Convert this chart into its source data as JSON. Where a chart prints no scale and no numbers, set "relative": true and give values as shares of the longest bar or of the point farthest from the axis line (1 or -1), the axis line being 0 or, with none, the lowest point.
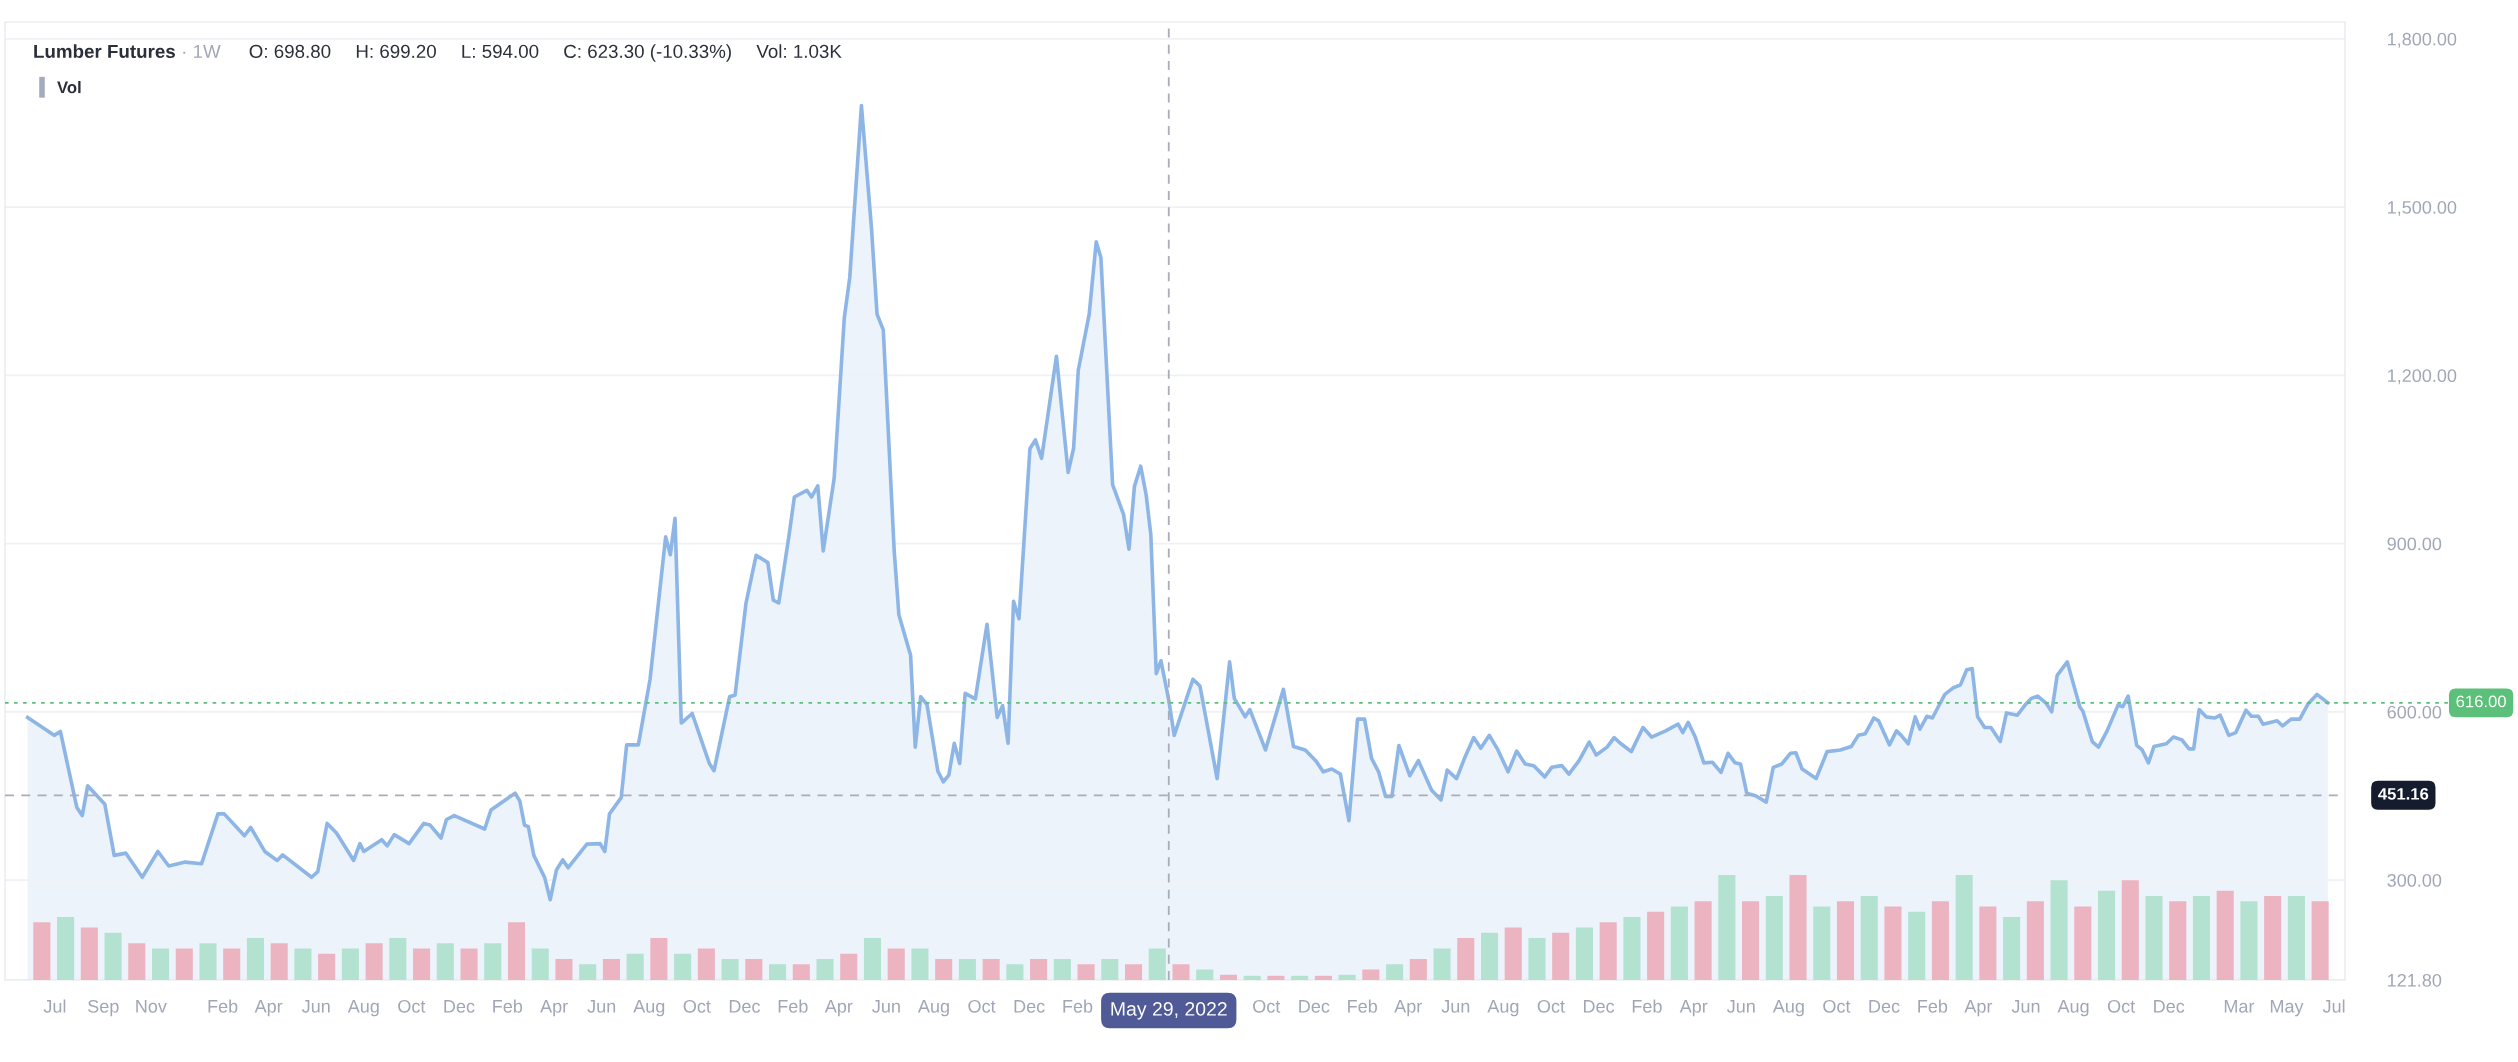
{
  "chart_data": [
    {
      "type": "area",
      "title": "Lumber Futures",
      "annotations": [
        "· 1W",
        "O: 698.80",
        "H: 699.20",
        "L: 594.00",
        "C: 623.30 (-10.33%)",
        "Vol: 1.03K"
      ],
      "x": [
        "2018-05-27",
        "2018-06-30",
        "2018-07-08",
        "2018-07-29",
        "2018-08-05",
        "2018-08-12",
        "2018-09-03",
        "2018-09-15",
        "2018-09-30",
        "2018-10-21",
        "2018-11-10",
        "2018-11-24",
        "2018-12-15",
        "2019-01-05",
        "2019-01-26",
        "2019-02-03",
        "2019-03-01",
        "2019-03-09",
        "2019-03-27",
        "2019-04-12",
        "2019-04-19",
        "2019-05-26",
        "2019-06-03",
        "2019-06-15",
        "2019-06-27",
        "2019-07-19",
        "2019-07-27",
        "2019-08-01",
        "2019-08-24",
        "2019-08-31",
        "2019-09-09",
        "2019-09-28",
        "2019-10-17",
        "2019-10-25",
        "2019-11-08",
        "2019-11-15",
        "2019-11-25",
        "2020-01-03",
        "2020-01-11",
        "2020-02-11",
        "2020-02-17",
        "2020-02-23",
        "2020-02-28",
        "2020-03-06",
        "2020-03-20",
        "2020-03-27",
        "2020-04-04",
        "2020-04-12",
        "2020-04-19",
        "2020-05-13",
        "2020-05-30",
        "2020-06-05",
        "2020-06-11",
        "2020-06-26",
        "2020-07-03",
        "2020-07-18",
        "2020-08-02",
        "2020-08-22",
        "2020-08-28",
        "2020-09-03",
        "2020-09-11",
        "2020-09-25",
        "2020-10-17",
        "2020-10-23",
        "2020-11-12",
        "2020-11-19",
        "2020-12-03",
        "2020-12-16",
        "2020-12-31",
        "2021-01-07",
        "2021-01-14",
        "2021-01-27",
        "2021-02-03",
        "2021-02-19",
        "2021-02-25",
        "2021-03-05",
        "2021-03-12",
        "2021-03-26",
        "2021-04-08",
        "2021-04-15",
        "2021-04-30",
        "2021-05-13",
        "2021-05-20",
        "2021-05-28",
        "2021-06-11",
        "2021-06-17",
        "2021-07-02",
        "2021-07-08",
        "2021-07-15",
        "2021-07-23",
        "2021-08-06",
        "2021-08-13",
        "2021-08-20",
        "2021-08-27",
        "2021-09-03",
        "2021-09-10",
        "2021-09-23",
        "2021-10-08",
        "2021-10-21",
        "2021-10-28",
        "2021-11-04",
        "2021-11-11",
        "2021-11-18",
        "2021-12-02",
        "2021-12-09",
        "2021-12-17",
        "2022-01-05",
        "2022-01-20",
        "2022-01-27",
        "2022-02-02",
        "2022-02-16",
        "2022-02-25",
        "2022-03-03",
        "2022-03-18",
        "2022-04-01",
        "2022-04-08",
        "2022-04-15",
        "2022-04-23",
        "2022-04-30",
        "2022-05-06",
        "2022-05-13",
        "2022-05-19",
        "2022-05-29",
        "2022-06-05",
        "2022-06-29",
        "2022-07-08",
        "2022-07-30",
        "2022-08-15",
        "2022-08-21",
        "2022-09-04",
        "2022-09-10",
        "2022-09-30",
        "2022-10-23",
        "2022-11-05",
        "2022-11-20",
        "2022-12-04",
        "2022-12-13",
        "2022-12-24",
        "2023-01-04",
        "2023-01-15",
        "2023-01-26",
        "2023-02-04",
        "2023-02-13",
        "2023-02-22",
        "2023-03-03",
        "2023-03-11",
        "2023-03-20",
        "2023-04-03",
        "2023-04-14",
        "2023-05-01",
        "2023-05-13",
        "2023-05-21",
        "2023-06-02",
        "2023-06-13",
        "2023-06-24",
        "2023-07-03",
        "2023-07-14",
        "2023-07-25",
        "2023-08-07",
        "2023-08-18",
        "2023-08-29",
        "2023-09-09",
        "2023-09-23",
        "2023-10-02",
        "2023-10-15",
        "2023-10-24",
        "2023-11-06",
        "2023-11-19",
        "2023-11-28",
        "2023-12-12",
        "2023-12-21",
        "2023-12-29",
        "2024-01-12",
        "2024-01-27",
        "2024-02-07",
        "2024-02-25",
        "2024-03-12",
        "2024-03-18",
        "2024-03-25",
        "2024-04-03",
        "2024-04-14",
        "2024-04-25",
        "2024-05-06",
        "2024-05-15",
        "2024-05-24",
        "2024-05-31",
        "2024-06-08",
        "2024-06-20",
        "2024-07-03",
        "2024-07-12",
        "2024-07-23",
        "2024-08-03",
        "2024-08-10",
        "2024-08-18",
        "2024-09-05",
        "2024-09-19",
        "2024-10-06",
        "2024-10-20",
        "2024-10-29",
        "2024-11-07",
        "2024-11-18",
        "2024-11-24",
        "2024-12-08",
        "2024-12-17",
        "2024-12-23",
        "2025-01-01",
        "2025-01-10",
        "2025-01-16",
        "2025-01-25",
        "2025-02-01",
        "2025-02-17",
        "2025-02-28",
        "2025-03-09",
        "2025-03-17",
        "2025-03-24",
        "2025-03-31",
        "2025-04-09",
        "2025-04-17",
        "2025-04-29",
        "2025-05-07",
        "2025-05-21",
        "2025-06-01",
        "2025-06-08",
        "2025-06-16",
        "2025-06-27",
        "2025-07-04",
        "2025-07-11",
        "2025-07-24",
        "2025-08-09",
        "2025-08-13",
        "2025-08-25",
        "2025-09-02",
        "2025-09-13",
        "2025-09-27",
        "2025-10-03",
        "2025-10-10",
        "2025-10-21",
        "2025-10-28",
        "2025-11-05",
        "2025-11-12",
        "2025-11-28",
        "2025-12-07",
        "2025-12-18",
        "2025-12-27",
        "2026-01-02",
        "2026-01-09",
        "2026-01-18",
        "2026-01-29",
        "2026-02-05",
        "2026-02-16",
        "2026-02-25",
        "2026-03-10",
        "2026-03-17",
        "2026-03-26",
        "2026-04-01",
        "2026-04-19",
        "2026-04-26",
        "2026-05-07",
        "2026-05-18",
        "2026-05-29",
        "2026-06-09",
        "2026-06-23"
      ],
      "series": [
        {
          "color": "#8db6e6",
          "values": [
            590,
            558,
            565,
            430,
            415,
            468,
            435,
            344,
            348,
            305,
            351,
            325,
            332,
            329,
            418,
            418,
            379,
            394,
            351,
            335,
            345,
            305,
            315,
            401,
            384,
            335,
            365,
            351,
            372,
            361,
            381,
            365,
            401,
            398,
            375,
            408,
            415,
            391,
            425,
            455,
            441,
            398,
            395,
            344,
            304,
            265,
            318,
            336,
            322,
            364,
            365,
            351,
            418,
            447,
            541,
            541,
            658,
            912,
            880,
            945,
            580,
            597,
            508,
            495,
            627,
            630,
            794,
            879,
            866,
            799,
            794,
            913,
            983,
            995,
            983,
            1003,
            887,
            1016,
            1302,
            1374,
            1681,
            1460,
            1309,
            1281,
            887,
            773,
            701,
            537,
            627,
            613,
            494,
            475,
            487,
            544,
            508,
            633,
            623,
            756,
            590,
            611,
            544,
            797,
            766,
            1069,
            1085,
            1052,
            1234,
            1027,
            1070,
            1209,
            1309,
            1438,
            1410,
            1005,
            952,
            890,
            1002,
            1038,
            987,
            916,
            668,
            691,
            621,
            558,
            658,
            646,
            481,
            689,
            624,
            591,
            604,
            532,
            640,
            538,
            532,
            512,
            493,
            498,
            489,
            406,
            587,
            587,
            517,
            493,
            449,
            449,
            540,
            486,
            513,
            460,
            443,
            496,
            481,
            520,
            554,
            535,
            558,
            532,
            493,
            530,
            507,
            504,
            484,
            501,
            504,
            489,
            513,
            546,
            523,
            537,
            554,
            544,
            529,
            572,
            555,
            566,
            578,
            563,
            581,
            555,
            509,
            510,
            492,
            526,
            509,
            507,
            455,
            450,
            439,
            501,
            507,
            526,
            527,
            498,
            481,
            529,
            532,
            538,
            558,
            561,
            589,
            584,
            541,
            566,
            558,
            543,
            591,
            569,
            592,
            589,
            631,
            643,
            648,
            675,
            677,
            591,
            572,
            572,
            547,
            598,
            594,
            614,
            624,
            628,
            615,
            600,
            665,
            689,
            609,
            601,
            547,
            537,
            566,
            612,
            609,
            628,
            540,
            532,
            509,
            538,
            543,
            555,
            550,
            534,
            534,
            604,
            591,
            589,
            594,
            558,
            563,
            603,
            592,
            592,
            578,
            584,
            575,
            587,
            587,
            615,
            631,
            616
          ]
        }
      ],
      "xlim": [
        "2018-04-28",
        "2026-07-15"
      ],
      "xticks": [
        {
          "value": "2018-07-01",
          "label": "Jul"
        },
        {
          "value": "2018-09-01",
          "label": "Sep"
        },
        {
          "value": "2018-11-01",
          "label": "Nov"
        },
        {
          "value": "2019-02-01",
          "label": "Feb"
        },
        {
          "value": "2019-04-01",
          "label": "Apr"
        },
        {
          "value": "2019-06-01",
          "label": "Jun"
        },
        {
          "value": "2019-08-01",
          "label": "Aug"
        },
        {
          "value": "2019-10-01",
          "label": "Oct"
        },
        {
          "value": "2019-12-01",
          "label": "Dec"
        },
        {
          "value": "2020-02-01",
          "label": "Feb"
        },
        {
          "value": "2020-04-01",
          "label": "Apr"
        },
        {
          "value": "2020-06-01",
          "label": "Jun"
        },
        {
          "value": "2020-08-01",
          "label": "Aug"
        },
        {
          "value": "2020-10-01",
          "label": "Oct"
        },
        {
          "value": "2020-12-01",
          "label": "Dec"
        },
        {
          "value": "2021-02-01",
          "label": "Feb"
        },
        {
          "value": "2021-04-01",
          "label": "Apr"
        },
        {
          "value": "2021-06-01",
          "label": "Jun"
        },
        {
          "value": "2021-08-01",
          "label": "Aug"
        },
        {
          "value": "2021-10-01",
          "label": "Oct"
        },
        {
          "value": "2021-12-01",
          "label": "Dec"
        },
        {
          "value": "2022-02-01",
          "label": "Feb"
        },
        {
          "value": "2022-10-01",
          "label": "Oct"
        },
        {
          "value": "2022-12-01",
          "label": "Dec"
        },
        {
          "value": "2023-02-01",
          "label": "Feb"
        },
        {
          "value": "2023-04-01",
          "label": "Apr"
        },
        {
          "value": "2023-06-01",
          "label": "Jun"
        },
        {
          "value": "2023-08-01",
          "label": "Aug"
        },
        {
          "value": "2023-10-01",
          "label": "Oct"
        },
        {
          "value": "2023-12-01",
          "label": "Dec"
        },
        {
          "value": "2024-02-01",
          "label": "Feb"
        },
        {
          "value": "2024-04-01",
          "label": "Apr"
        },
        {
          "value": "2024-06-01",
          "label": "Jun"
        },
        {
          "value": "2024-08-01",
          "label": "Aug"
        },
        {
          "value": "2024-10-01",
          "label": "Oct"
        },
        {
          "value": "2024-12-01",
          "label": "Dec"
        },
        {
          "value": "2025-02-01",
          "label": "Feb"
        },
        {
          "value": "2025-04-01",
          "label": "Apr"
        },
        {
          "value": "2025-06-01",
          "label": "Jun"
        },
        {
          "value": "2025-08-01",
          "label": "Aug"
        },
        {
          "value": "2025-10-01",
          "label": "Oct"
        },
        {
          "value": "2025-12-01",
          "label": "Dec"
        },
        {
          "value": "2026-03-01",
          "label": "Mar"
        },
        {
          "value": "2026-05-01",
          "label": "May"
        },
        {
          "value": "2026-07-01",
          "label": "Jul"
        }
      ],
      "ylim": [
        121.8,
        1830
      ],
      "yticks": [
        {
          "value": 121.8,
          "label": "121.80"
        },
        {
          "value": 300,
          "label": "300.00"
        },
        {
          "value": 600,
          "label": "600.00"
        },
        {
          "value": 900,
          "label": "900.00"
        },
        {
          "value": 1200,
          "label": "1,200.00"
        },
        {
          "value": 1500,
          "label": "1,500.00"
        },
        {
          "value": 1800,
          "label": "1,800.00"
        }
      ],
      "grid": "y",
      "ref_lines": [
        {
          "axis": "y",
          "value": 451.16,
          "label": "451.16",
          "color": "#a9adba",
          "line_style": "dashed"
        },
        {
          "axis": "y",
          "value": 616,
          "label": "616.00",
          "color": "#5cbf7a",
          "line_style": "dotted"
        },
        {
          "axis": "x",
          "value": "2022-05-29",
          "label": "May 29, 2022",
          "color": "#a9adba",
          "line_style": "dashed"
        }
      ]
    },
    {
      "type": "bar",
      "relative": true,
      "legend": "top left",
      "categories": [
        null,
        null,
        null,
        null,
        null,
        null,
        null,
        null,
        null,
        null,
        null,
        null,
        null,
        null,
        null,
        null,
        null,
        null,
        null,
        null,
        null,
        null,
        null,
        null,
        null,
        null,
        null,
        null,
        null,
        null,
        null,
        null,
        null,
        null,
        null,
        null,
        null,
        null,
        null,
        null,
        null,
        null,
        null,
        null,
        null,
        null,
        null,
        null,
        null,
        null,
        null,
        null,
        null,
        null,
        null,
        null,
        null,
        null,
        null,
        null,
        null,
        null,
        null,
        null,
        null,
        null,
        null,
        null,
        null,
        null,
        null,
        null,
        null,
        null,
        null,
        null,
        null,
        null,
        null,
        null,
        null,
        null,
        null,
        null,
        null,
        null,
        null,
        null,
        null,
        null,
        null,
        null,
        null,
        null,
        null,
        null,
        null
      ],
      "series": [
        {
          "name": "Vol",
          "color": "#a3abbd",
          "colors": [
            "#ecb3c0",
            "#b3e2d0",
            "#ecb3c0",
            "#b3e2d0",
            "#ecb3c0",
            "#b3e2d0",
            "#ecb3c0",
            "#b3e2d0",
            "#ecb3c0",
            "#b3e2d0",
            "#ecb3c0",
            "#b3e2d0",
            "#ecb3c0",
            "#b3e2d0",
            "#ecb3c0",
            "#b3e2d0",
            "#ecb3c0",
            "#b3e2d0",
            "#ecb3c0",
            "#b3e2d0",
            "#ecb3c0",
            "#b3e2d0",
            "#ecb3c0",
            "#b3e2d0",
            "#ecb3c0",
            "#b3e2d0",
            "#ecb3c0",
            "#b3e2d0",
            "#ecb3c0",
            "#b3e2d0",
            "#ecb3c0",
            "#b3e2d0",
            "#ecb3c0",
            "#b3e2d0",
            "#ecb3c0",
            "#b3e2d0",
            "#ecb3c0",
            "#b3e2d0",
            "#ecb3c0",
            "#b3e2d0",
            "#ecb3c0",
            "#b3e2d0",
            "#ecb3c0",
            "#b3e2d0",
            "#ecb3c0",
            "#b3e2d0",
            "#ecb3c0",
            "#b3e2d0",
            "#ecb3c0",
            "#b3e2d0",
            "#ecb3c0",
            "#b3e2d0",
            "#ecb3c0",
            "#b3e2d0",
            "#ecb3c0",
            "#b3e2d0",
            "#ecb3c0",
            "#b3e2d0",
            "#ecb3c0",
            "#b3e2d0",
            "#ecb3c0",
            "#b3e2d0",
            "#ecb3c0",
            "#b3e2d0",
            "#ecb3c0",
            "#b3e2d0",
            "#ecb3c0",
            "#b3e2d0",
            "#ecb3c0",
            "#b3e2d0",
            "#ecb3c0",
            "#b3e2d0",
            "#ecb3c0",
            "#b3e2d0",
            "#ecb3c0",
            "#b3e2d0",
            "#ecb3c0",
            "#b3e2d0",
            "#ecb3c0",
            "#b3e2d0",
            "#ecb3c0",
            "#b3e2d0",
            "#ecb3c0",
            "#b3e2d0",
            "#ecb3c0",
            "#b3e2d0",
            "#ecb3c0",
            "#b3e2d0",
            "#ecb3c0",
            "#b3e2d0",
            "#ecb3c0",
            "#b3e2d0",
            "#ecb3c0",
            "#b3e2d0",
            "#ecb3c0",
            "#b3e2d0",
            "#ecb3c0"
          ],
          "values": [
            0.55,
            0.6,
            0.5,
            0.45,
            0.35,
            0.3,
            0.3,
            0.35,
            0.3,
            0.4,
            0.35,
            0.3,
            0.25,
            0.3,
            0.35,
            0.4,
            0.3,
            0.35,
            0.3,
            0.35,
            0.55,
            0.3,
            0.2,
            0.15,
            0.2,
            0.25,
            0.4,
            0.25,
            0.3,
            0.2,
            0.2,
            0.15,
            0.15,
            0.2,
            0.25,
            0.4,
            0.3,
            0.3,
            0.2,
            0.2,
            0.2,
            0.15,
            0.2,
            0.2,
            0.15,
            0.2,
            0.15,
            0.3,
            0.15,
            0.1,
            0.05,
            0.04,
            0.04,
            0.04,
            0.04,
            0.05,
            0.1,
            0.15,
            0.2,
            0.3,
            0.4,
            0.45,
            0.5,
            0.4,
            0.45,
            0.5,
            0.55,
            0.6,
            0.65,
            0.7,
            0.75,
            1,
            0.75,
            0.8,
            1,
            0.7,
            0.75,
            0.8,
            0.7,
            0.65,
            0.75,
            1,
            0.7,
            0.6,
            0.75,
            0.95,
            0.7,
            0.85,
            0.95,
            0.8,
            0.75,
            0.8,
            0.85,
            0.75,
            0.8,
            0.8,
            0.75
          ]
        }
      ]
    }
  ]
}
